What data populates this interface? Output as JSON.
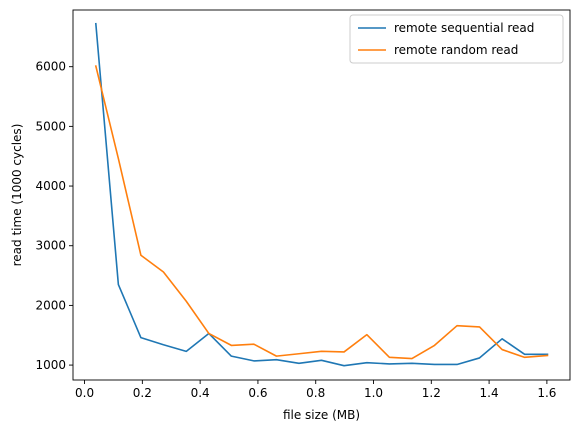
{
  "chart_data": {
    "type": "line",
    "title": "",
    "xlabel": "file size (MB)",
    "ylabel": "read time (1000 cycles)",
    "xlim": [
      -0.04,
      1.68
    ],
    "ylim": [
      750,
      6950
    ],
    "xticks": [
      0.0,
      0.2,
      0.4,
      0.6,
      0.8,
      1.0,
      1.2,
      1.4,
      1.6
    ],
    "xtick_labels": [
      "0.0",
      "0.2",
      "0.4",
      "0.6",
      "0.8",
      "1.0",
      "1.2",
      "1.4",
      "1.6"
    ],
    "yticks": [
      1000,
      2000,
      3000,
      4000,
      5000,
      6000
    ],
    "ytick_labels": [
      "1000",
      "2000",
      "3000",
      "4000",
      "5000",
      "6000"
    ],
    "grid": false,
    "legend_position": "top-right",
    "x": [
      0.039,
      0.117,
      0.195,
      0.273,
      0.352,
      0.43,
      0.508,
      0.586,
      0.664,
      0.742,
      0.82,
      0.898,
      0.977,
      1.055,
      1.133,
      1.211,
      1.289,
      1.367,
      1.445,
      1.523,
      1.602
    ],
    "series": [
      {
        "name": "remote sequential read",
        "color": "#1f77b4",
        "values": [
          6720,
          2350,
          1460,
          1340,
          1230,
          1530,
          1150,
          1070,
          1090,
          1030,
          1080,
          990,
          1040,
          1020,
          1030,
          1010,
          1010,
          1120,
          1440,
          1180,
          1180
        ]
      },
      {
        "name": "remote random read",
        "color": "#ff7f0e",
        "values": [
          6010,
          4460,
          2840,
          2560,
          2070,
          1530,
          1330,
          1350,
          1150,
          1190,
          1230,
          1220,
          1510,
          1130,
          1110,
          1330,
          1660,
          1640,
          1260,
          1130,
          1160
        ]
      }
    ]
  }
}
